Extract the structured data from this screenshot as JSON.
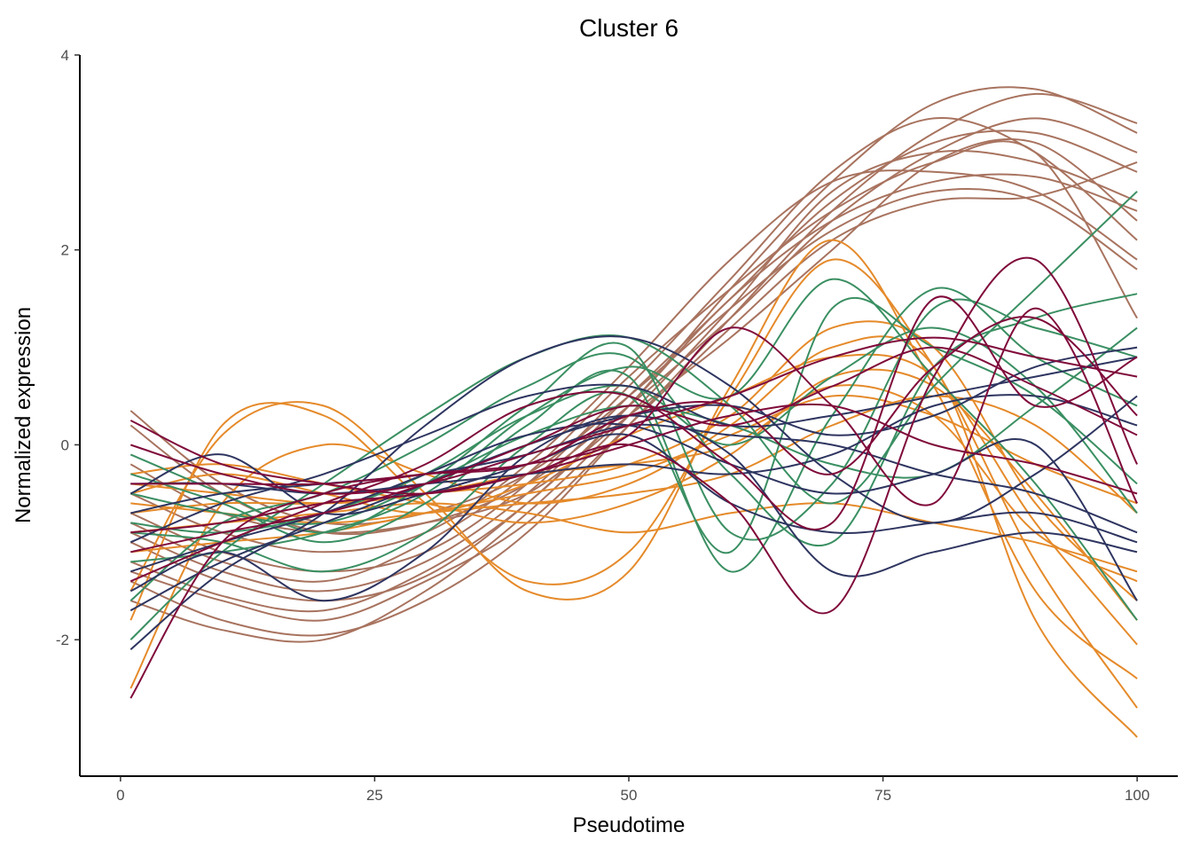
{
  "chart_data": {
    "type": "line",
    "title": "Cluster 6",
    "xlabel": "Pseudotime",
    "ylabel": "Normalized expression",
    "xlim": [
      -4,
      104
    ],
    "ylim": [
      -3.4,
      4.0
    ],
    "x_ticks": [
      0,
      25,
      50,
      75,
      100
    ],
    "x_tick_labels": [
      "0",
      "25",
      "50",
      "75",
      "100"
    ],
    "y_ticks": [
      -2,
      0,
      2,
      4
    ],
    "y_tick_labels": [
      "-2",
      "0",
      "2",
      "4"
    ],
    "grid": false,
    "legend": "none",
    "colors": {
      "brown": "#a8735f",
      "orange": "#e58a2a",
      "green": "#3a8f62",
      "navy": "#2e3560",
      "crimson": "#7f0a3a"
    },
    "x": [
      1,
      10,
      20,
      30,
      40,
      50,
      60,
      70,
      80,
      90,
      100
    ],
    "series": [
      {
        "color": "brown",
        "values": [
          -1.2,
          -1.55,
          -1.7,
          -1.3,
          -0.6,
          0.4,
          1.6,
          2.7,
          3.5,
          3.65,
          3.2
        ]
      },
      {
        "color": "brown",
        "values": [
          -1.4,
          -1.8,
          -1.95,
          -1.6,
          -0.9,
          0.2,
          1.3,
          2.4,
          3.2,
          3.6,
          3.3
        ]
      },
      {
        "color": "brown",
        "values": [
          -0.9,
          -1.3,
          -1.5,
          -1.2,
          -0.5,
          0.5,
          1.5,
          2.5,
          3.1,
          3.2,
          2.8
        ]
      },
      {
        "color": "brown",
        "values": [
          -0.7,
          -1.1,
          -1.3,
          -1.1,
          -0.4,
          0.6,
          1.7,
          2.8,
          3.35,
          3.0,
          2.1
        ]
      },
      {
        "color": "brown",
        "values": [
          -1.6,
          -1.9,
          -2.0,
          -1.5,
          -0.7,
          0.3,
          1.4,
          2.6,
          3.0,
          2.9,
          2.5
        ]
      },
      {
        "color": "brown",
        "values": [
          -0.5,
          -0.9,
          -1.1,
          -0.9,
          -0.2,
          0.8,
          1.9,
          2.7,
          2.8,
          2.6,
          1.9
        ]
      },
      {
        "color": "brown",
        "values": [
          -1.0,
          -1.4,
          -1.6,
          -1.35,
          -0.6,
          0.4,
          1.5,
          2.3,
          2.7,
          2.75,
          2.4
        ]
      },
      {
        "color": "brown",
        "values": [
          0.35,
          -0.4,
          -0.8,
          -0.7,
          -0.3,
          0.5,
          1.4,
          2.2,
          2.6,
          2.5,
          1.8
        ]
      },
      {
        "color": "brown",
        "values": [
          -0.2,
          -0.7,
          -0.9,
          -0.8,
          -0.5,
          0.3,
          1.1,
          2.0,
          2.9,
          3.1,
          2.3
        ]
      },
      {
        "color": "brown",
        "values": [
          -1.3,
          -1.6,
          -1.8,
          -1.4,
          -0.8,
          0.2,
          1.2,
          2.1,
          2.5,
          2.55,
          2.9
        ]
      },
      {
        "color": "brown",
        "values": [
          -0.8,
          -1.2,
          -1.4,
          -1.0,
          -0.3,
          0.7,
          1.6,
          2.4,
          2.9,
          3.0,
          1.3
        ]
      },
      {
        "color": "brown",
        "values": [
          0.2,
          -0.5,
          -0.9,
          -0.8,
          -0.4,
          0.4,
          1.3,
          2.3,
          3.0,
          3.35,
          3.0
        ]
      },
      {
        "color": "orange",
        "values": [
          -2.5,
          -0.6,
          0.0,
          -0.3,
          -0.6,
          -0.4,
          0.2,
          1.0,
          0.8,
          -1.8,
          -3.0
        ]
      },
      {
        "color": "orange",
        "values": [
          -1.8,
          0.2,
          0.3,
          -0.6,
          -1.4,
          -1.1,
          0.5,
          1.9,
          0.8,
          -1.2,
          -2.7
        ]
      },
      {
        "color": "orange",
        "values": [
          -1.5,
          0.1,
          0.4,
          -0.5,
          -1.5,
          -1.3,
          0.6,
          2.1,
          0.6,
          -1.5,
          -2.4
        ]
      },
      {
        "color": "orange",
        "values": [
          -0.5,
          -0.3,
          -0.5,
          -0.7,
          -0.4,
          0.1,
          0.5,
          0.9,
          0.7,
          -0.8,
          -2.05
        ]
      },
      {
        "color": "orange",
        "values": [
          -0.4,
          -0.5,
          -0.6,
          -0.5,
          -0.3,
          -0.2,
          0.0,
          0.6,
          0.3,
          -0.9,
          -1.4
        ]
      },
      {
        "color": "orange",
        "values": [
          -0.6,
          -0.7,
          -0.8,
          -0.7,
          -0.6,
          -0.5,
          -0.3,
          0.2,
          0.5,
          0.2,
          -0.7
        ]
      },
      {
        "color": "orange",
        "values": [
          -0.3,
          -0.2,
          -0.4,
          -0.6,
          -0.8,
          -0.6,
          -0.1,
          0.7,
          0.6,
          -0.5,
          -1.8
        ]
      },
      {
        "color": "orange",
        "values": [
          -0.9,
          -0.8,
          -0.7,
          -0.6,
          -0.7,
          -0.9,
          -0.7,
          -0.6,
          -0.8,
          -1.0,
          -1.3
        ]
      },
      {
        "color": "orange",
        "values": [
          -1.1,
          -1.0,
          -0.9,
          -0.7,
          -0.5,
          -0.3,
          0.1,
          0.5,
          0.3,
          -0.2,
          -0.6
        ]
      },
      {
        "color": "orange",
        "values": [
          -0.7,
          -0.6,
          -0.6,
          -0.5,
          -0.4,
          -0.2,
          0.3,
          1.2,
          1.0,
          -0.6,
          -1.6
        ]
      },
      {
        "color": "green",
        "values": [
          -2.0,
          -1.1,
          -0.4,
          0.3,
          0.9,
          1.1,
          0.4,
          -0.6,
          0.6,
          1.6,
          2.6
        ]
      },
      {
        "color": "green",
        "values": [
          -1.6,
          -0.8,
          -0.5,
          0.0,
          0.6,
          0.9,
          -0.3,
          -1.0,
          0.8,
          1.3,
          1.55
        ]
      },
      {
        "color": "green",
        "values": [
          -0.1,
          -0.5,
          -0.9,
          -0.4,
          0.4,
          1.0,
          -0.9,
          -0.4,
          1.4,
          1.2,
          0.9
        ]
      },
      {
        "color": "green",
        "values": [
          -0.3,
          -0.6,
          -1.0,
          -0.6,
          0.2,
          0.7,
          -1.3,
          0.3,
          1.6,
          0.9,
          0.4
        ]
      },
      {
        "color": "green",
        "values": [
          -0.9,
          -1.0,
          -1.3,
          -0.9,
          0.0,
          0.5,
          -1.1,
          1.4,
          1.0,
          0.5,
          -0.4
        ]
      },
      {
        "color": "green",
        "values": [
          -1.2,
          -1.1,
          -0.9,
          -0.5,
          0.3,
          0.8,
          0.5,
          1.7,
          0.7,
          -0.4,
          -1.8
        ]
      },
      {
        "color": "green",
        "values": [
          -0.5,
          -0.7,
          -0.8,
          -0.4,
          0.1,
          0.4,
          0.2,
          -0.2,
          -0.3,
          0.4,
          1.2
        ]
      },
      {
        "color": "green",
        "values": [
          -0.8,
          -0.9,
          -0.7,
          -0.3,
          0.3,
          0.6,
          0.0,
          0.7,
          1.2,
          0.6,
          -0.7
        ]
      },
      {
        "color": "navy",
        "values": [
          -2.1,
          -1.3,
          -0.7,
          0.2,
          0.9,
          1.1,
          0.6,
          -0.3,
          -0.8,
          -0.3,
          0.5
        ]
      },
      {
        "color": "navy",
        "values": [
          -1.5,
          -1.1,
          -1.6,
          -1.1,
          -0.1,
          0.3,
          -0.1,
          -1.3,
          -1.1,
          -0.9,
          -1.1
        ]
      },
      {
        "color": "navy",
        "values": [
          -0.5,
          -0.1,
          -0.7,
          -0.5,
          -0.2,
          0.1,
          -0.6,
          -0.9,
          -0.8,
          -0.7,
          -1.0
        ]
      },
      {
        "color": "navy",
        "values": [
          -1.0,
          -0.6,
          -0.3,
          0.1,
          0.5,
          0.6,
          0.2,
          0.3,
          0.5,
          0.7,
          0.9
        ]
      },
      {
        "color": "navy",
        "values": [
          -0.7,
          -0.5,
          -0.4,
          -0.3,
          -0.1,
          0.2,
          0.1,
          0.0,
          -0.3,
          -0.5,
          -0.9
        ]
      },
      {
        "color": "navy",
        "values": [
          -1.7,
          -1.2,
          -0.8,
          -0.4,
          0.0,
          0.3,
          0.4,
          0.1,
          0.3,
          0.8,
          1.0
        ]
      },
      {
        "color": "navy",
        "values": [
          -1.3,
          -1.0,
          -0.7,
          -0.3,
          0.1,
          0.2,
          -0.2,
          -0.5,
          -0.3,
          0.0,
          -1.6
        ]
      },
      {
        "color": "navy",
        "values": [
          -0.4,
          -0.4,
          -0.5,
          -0.4,
          -0.3,
          -0.2,
          -0.3,
          -0.1,
          0.4,
          0.5,
          0.2
        ]
      },
      {
        "color": "crimson",
        "values": [
          -2.6,
          -1.0,
          -0.5,
          -0.3,
          -0.2,
          0.1,
          1.2,
          0.4,
          -0.6,
          1.4,
          -0.6
        ]
      },
      {
        "color": "crimson",
        "values": [
          0.25,
          -0.2,
          -0.4,
          -0.5,
          -0.3,
          0.0,
          -0.6,
          -1.7,
          0.7,
          1.9,
          -0.2
        ]
      },
      {
        "color": "crimson",
        "values": [
          -1.4,
          -1.0,
          -0.6,
          -0.2,
          0.4,
          0.5,
          -0.2,
          -0.8,
          1.5,
          0.4,
          0.9
        ]
      },
      {
        "color": "crimson",
        "values": [
          -0.4,
          -0.4,
          -0.4,
          -0.3,
          -0.2,
          0.3,
          0.4,
          -0.3,
          0.8,
          1.3,
          0.3
        ]
      },
      {
        "color": "crimson",
        "values": [
          0.0,
          -0.3,
          -0.5,
          -0.4,
          -0.1,
          0.2,
          0.5,
          0.9,
          1.1,
          0.9,
          0.7
        ]
      },
      {
        "color": "crimson",
        "values": [
          -0.9,
          -0.8,
          -0.6,
          -0.5,
          -0.3,
          0.0,
          0.3,
          0.4,
          0.0,
          -0.2,
          -0.5
        ]
      },
      {
        "color": "crimson",
        "values": [
          -1.1,
          -0.9,
          -0.7,
          -0.4,
          0.0,
          0.4,
          0.2,
          0.6,
          1.0,
          0.6,
          0.1
        ]
      }
    ]
  }
}
